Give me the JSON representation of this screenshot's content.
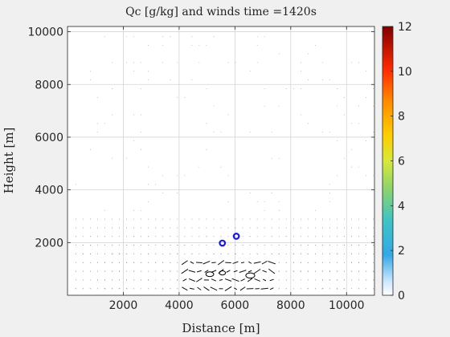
{
  "chart_data": {
    "type": "quiver",
    "title": "Qc [g/kg] and winds   time =1420s",
    "xlabel": "Distance [m]",
    "ylabel": "Height [m]",
    "xlim": [
      0,
      11000
    ],
    "ylim": [
      0,
      10200
    ],
    "xticks": [
      2000,
      4000,
      6000,
      8000,
      10000
    ],
    "yticks": [
      2000,
      4000,
      6000,
      8000,
      10000
    ],
    "grid": true,
    "colorbar": {
      "label": "",
      "lim": [
        0,
        12
      ],
      "ticks": [
        0,
        2,
        4,
        6,
        8,
        10,
        12
      ],
      "colormap": "jet-white"
    },
    "markers": [
      {
        "x": 5550,
        "y": 1980,
        "color": "#1a1ad6"
      },
      {
        "x": 6050,
        "y": 2240,
        "color": "#1a1ad6"
      }
    ],
    "qc_contours": [
      {
        "x": 5100,
        "y": 800,
        "rx": 140,
        "ry": 90
      },
      {
        "x": 5550,
        "y": 850,
        "rx": 110,
        "ry": 80
      },
      {
        "x": 6550,
        "y": 750,
        "rx": 160,
        "ry": 100
      }
    ]
  },
  "colors": {
    "background": "#f0f0f0",
    "plot_bg": "#ffffff",
    "marker": "#1a1ad6",
    "vector": "#000000"
  }
}
